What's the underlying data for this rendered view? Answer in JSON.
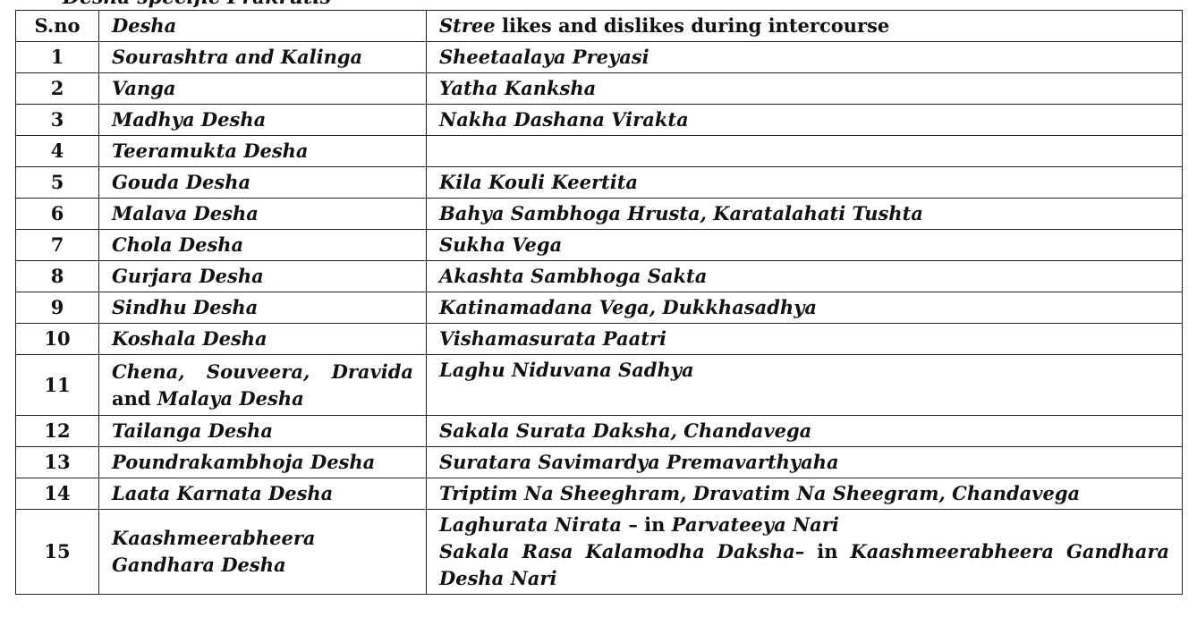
{
  "heading_fragment": "Desha specific Prakrutis",
  "table": {
    "headers": {
      "sno": "S.no",
      "desha": "Desha",
      "stree_em": "Stree",
      "stree_rest": " likes and dislikes during intercourse"
    },
    "rows": [
      {
        "sno": "1",
        "desha": "Sourashtra and Kalinga",
        "stree": "Sheetaalaya Preyasi"
      },
      {
        "sno": "2",
        "desha": "Vanga",
        "stree": "Yatha Kanksha"
      },
      {
        "sno": "3",
        "desha": "Madhya Desha",
        "stree": "Nakha Dashana Virakta"
      },
      {
        "sno": "4",
        "desha": "Teeramukta Desha",
        "stree": ""
      },
      {
        "sno": "5",
        "desha": "Gouda Desha",
        "stree": "Kila Kouli Keertita"
      },
      {
        "sno": "6",
        "desha": "Malava Desha",
        "stree": "Bahya Sambhoga Hrusta, Karatalahati Tushta"
      },
      {
        "sno": "7",
        "desha": "Chola Desha",
        "stree": "Sukha Vega"
      },
      {
        "sno": "8",
        "desha": "Gurjara Desha",
        "stree": "Akashta Sambhoga Sakta"
      },
      {
        "sno": "9",
        "desha": "Sindhu Desha",
        "stree": "Katinamadana Vega, Dukkhasadhya"
      },
      {
        "sno": "10",
        "desha": "Koshala Desha",
        "stree": "Vishamasurata Paatri"
      },
      {
        "sno": "11",
        "desha_line1": "Chena, Souveera, Dravida",
        "desha_and": "and ",
        "desha_line2": "Malaya Desha",
        "stree": "Laghu Niduvana Sadhya"
      },
      {
        "sno": "12",
        "desha": "Tailanga Desha",
        "stree": "Sakala Surata Daksha, Chandavega"
      },
      {
        "sno": "13",
        "desha": "Poundrakambhoja Desha",
        "stree": "Suratara Savimardya Premavarthyaha"
      },
      {
        "sno": "14",
        "desha": "Laata Karnata Desha",
        "stree": "Triptim Na Sheeghram, Dravatim Na Sheegram, Chandavega"
      },
      {
        "sno": "15",
        "desha_line1": "Kaashmeerabheera",
        "desha_line2": "Gandhara Desha",
        "stree_a_em": "Laghurata Nirata",
        "stree_a_mid": " – in ",
        "stree_a_em2": "Parvateeya Nari",
        "stree_b_em": "Sakala Rasa Kalamodha Daksha",
        "stree_b_mid": "– in ",
        "stree_b_em2": "Kaashmeerabheera Gandhara",
        "stree_b_em3": "Desha Nari"
      }
    ]
  }
}
